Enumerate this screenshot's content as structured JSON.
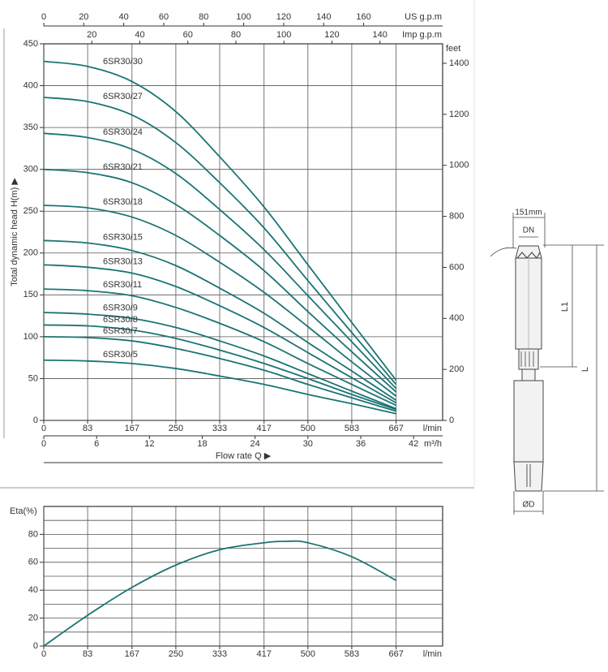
{
  "chart_data": [
    {
      "type": "line",
      "ylabel": "Total dynamic head H(m) ▶",
      "xlabel": "Flow rate Q ▶",
      "xunit": "l/min",
      "x": [
        0,
        83,
        167,
        250,
        333,
        417,
        500,
        583,
        667
      ],
      "xlim": [
        0,
        755
      ],
      "xticks": [
        0,
        83,
        167,
        250,
        333,
        417,
        500,
        583,
        667
      ],
      "ylim": [
        0,
        450
      ],
      "yticks": [
        0,
        50,
        100,
        150,
        200,
        250,
        300,
        350,
        400,
        450
      ],
      "y2label": "feet",
      "y2lim": [
        0,
        1476.4
      ],
      "y2ticks": [
        0,
        200,
        400,
        600,
        800,
        1000,
        1200,
        1400
      ],
      "extra_x_axes": [
        {
          "label": "m³/h",
          "position": "bottom",
          "xlim": [
            0,
            45.3
          ],
          "xticks": [
            0,
            6,
            12,
            18,
            24,
            30,
            36,
            42
          ]
        },
        {
          "label": "Imp g.p.m",
          "position": "top",
          "xlim": [
            0,
            166.1
          ],
          "xticks": [
            20,
            40,
            60,
            80,
            100,
            120,
            140
          ]
        },
        {
          "label": "US g.p.m",
          "position": "top",
          "xlim": [
            0,
            199.5
          ],
          "xticks": [
            0,
            20,
            40,
            60,
            80,
            100,
            120,
            140,
            160
          ]
        }
      ],
      "grid": true,
      "series": [
        {
          "name": "6SR30/30",
          "color": "#1b7474",
          "values": [
            429,
            423,
            405,
            369,
            315,
            255,
            186,
            117,
            48
          ]
        },
        {
          "name": "6SR30/27",
          "color": "#1b7474",
          "values": [
            386,
            381,
            365,
            332,
            284,
            230,
            167,
            105,
            43
          ]
        },
        {
          "name": "6SR30/24",
          "color": "#1b7474",
          "values": [
            343,
            338,
            324,
            295,
            252,
            204,
            149,
            94,
            38
          ]
        },
        {
          "name": "6SR30/21",
          "color": "#1b7474",
          "values": [
            300,
            296,
            284,
            258,
            221,
            179,
            130,
            82,
            34
          ]
        },
        {
          "name": "6SR30/18",
          "color": "#1b7474",
          "values": [
            257,
            254,
            243,
            221,
            189,
            153,
            112,
            70,
            29
          ]
        },
        {
          "name": "6SR30/15",
          "color": "#1b7474",
          "values": [
            215,
            212,
            203,
            185,
            158,
            128,
            93,
            59,
            24
          ]
        },
        {
          "name": "6SR30/13",
          "color": "#1b7474",
          "values": [
            186,
            183,
            176,
            160,
            137,
            111,
            81,
            51,
            21
          ]
        },
        {
          "name": "6SR30/11",
          "color": "#1b7474",
          "values": [
            157,
            155,
            149,
            135,
            116,
            94,
            68,
            43,
            18
          ]
        },
        {
          "name": "6SR30/9",
          "color": "#1b7474",
          "values": [
            129,
            127,
            122,
            111,
            95,
            77,
            56,
            35,
            14
          ]
        },
        {
          "name": "6SR30/8",
          "color": "#1b7474",
          "values": [
            114,
            113,
            108,
            98,
            84,
            68,
            50,
            31,
            13
          ]
        },
        {
          "name": "6SR30/7",
          "color": "#1b7474",
          "values": [
            100,
            99,
            95,
            86,
            74,
            60,
            43,
            27,
            11
          ]
        },
        {
          "name": "6SR30/5",
          "color": "#1b7474",
          "values": [
            72,
            71,
            68,
            62,
            53,
            43,
            31,
            20,
            8
          ]
        }
      ]
    },
    {
      "type": "line",
      "ylabel": "Eta(%)",
      "xunit": "l/min",
      "x": [
        0,
        83,
        167,
        250,
        333,
        417,
        458,
        500,
        583,
        667
      ],
      "xlim": [
        0,
        755
      ],
      "xticks": [
        0,
        83,
        167,
        250,
        333,
        417,
        500,
        583,
        667
      ],
      "ylim": [
        0,
        100
      ],
      "yticks": [
        0,
        20,
        40,
        60,
        80
      ],
      "minor_yticks": [
        10,
        30,
        50,
        70,
        90
      ],
      "grid": true,
      "series": [
        {
          "color": "#1b7474",
          "values": [
            0,
            22,
            42,
            58,
            69,
            74,
            75,
            74,
            64,
            47
          ]
        }
      ]
    }
  ],
  "diagram": {
    "width_label": "151mm",
    "dn_label": "DN",
    "l1_label": "L1",
    "l_label": "L",
    "diameter_label": "ØD"
  }
}
